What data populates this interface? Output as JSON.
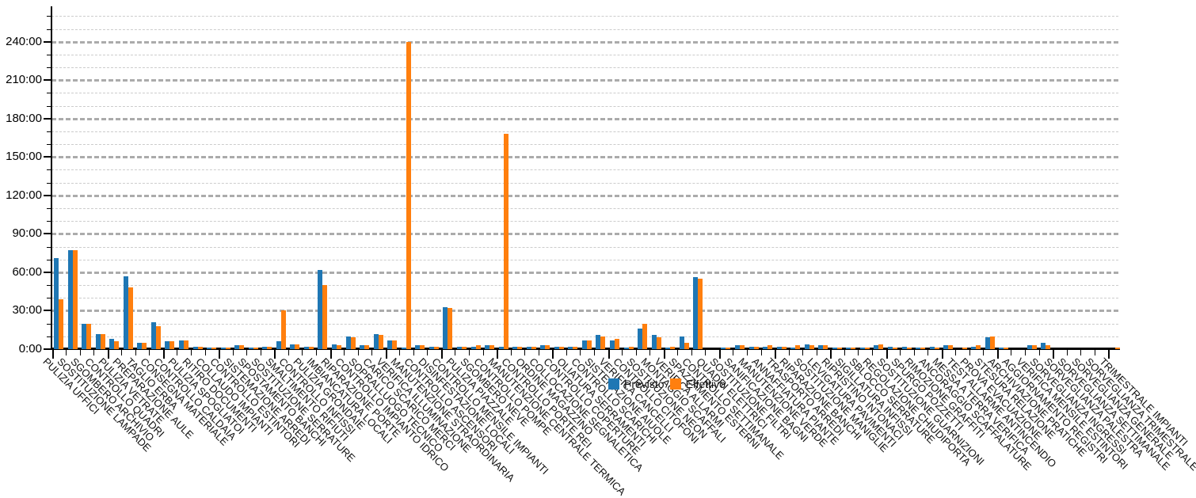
{
  "chart_data": {
    "type": "bar",
    "title": "",
    "value_format": "minutes shown as M:SS",
    "y_axis": {
      "tick_labels": [
        "0:00",
        "30:00",
        "60:00",
        "90:00",
        "120:00",
        "150:00",
        "180:00",
        "210:00",
        "240:00"
      ],
      "major_step_minutes": 30,
      "minor_step_minutes": 10,
      "range_minutes": [
        0,
        260
      ],
      "grid": "horizontal dashed"
    },
    "legend": {
      "position": "bottom-center"
    },
    "categories": [
      "PULIZIA UFFICI",
      "SOSTITUZIONE LAMPADE",
      "SGOMBERO ARCHIVIO",
      "CONTROLLO QUADRI",
      "PULIZIA VETRATE",
      "PREPARAZIONE AULE",
      "TAGLIO ERBA",
      "CONSEGNA MATERIALE",
      "CONTROLLO CALDAIA",
      "PULIZIA SPOGLIATOI",
      "RITIRO DOCUMENTI",
      "COLLAUDO IMPIANTI",
      "CONTROLLO ESTINTORI",
      "SISTEMAZIONE ARREDI",
      "SPOSTAMENTO BANCHI",
      "SOSTITUZIONE SERRATURE",
      "SMALTIMENTO RIFIUTI",
      "CONTROLLO INFISSI",
      "PULIZIA GRONDAIE",
      "IMBIANCATURA LOCALI",
      "RIPARAZIONE PORTE",
      "CONTROLLO IMPIANTO IDRICO",
      "SOPRALLUOGO TECNICO",
      "CARICO SCARICO MERCI",
      "VERIFICA ILLUMINAZIONE",
      "MANUTENZIONE STRAORDINARIA",
      "CONTROLLO ASCENSORI",
      "DISINFESTAZIONE LOCALI",
      "CONTROLLO MENSILE IMPIANTI",
      "PULIZIA PIAZZALE",
      "SGOMBERO NEVE",
      "CONTROLLO POMPE",
      "MANUTENZIONE CENTRALE TERMICA",
      "CONTROLLO PORTE REI",
      "ORDINE MAGAZZINO",
      "COLLOCAZIONE SEGNALETICA",
      "CONTROLLO COPERTURE",
      "OLIATURA SERRAMENTI",
      "CONTROLLO SCARICHI",
      "SISTEMAZIONE AIUOLE",
      "VERIFICA CANCELLI",
      "CONTROLLO CITOFONI",
      "SOSTITUZIONE NEON",
      "MONTAGGIO SCAFFALI",
      "VERIFICA ALLARMI",
      "SPAZZAMENTO ESTERNI",
      "CONTROLLO SETTIMANALE",
      "QUADRI ELETTRICI",
      "SOSTITUZIONE FILTRI",
      "SANIFICAZIONE BAGNI",
      "MANUTENZIONE VERDE",
      "ANNAFFIATURA PIANTE",
      "TRASPORTO ARREDI",
      "RIPARAZIONE BANCHI",
      "SOSTITUZIONE MANIGLIE",
      "LEVIGATURA PAVIMENTI",
      "RIPRISTINO INTONACI",
      "SIGILLATURA INFISSI",
      "SBLOCCO SERRATURE",
      "REGOLAZIONE CHIUDIPORTA",
      "SOSTITUZIONE GUARNIZIONI",
      "SPURGO POZZETTI",
      "RIMOZIONE GRAFFITI",
      "ANCORAGGIO SCAFFALATURE",
      "MESSA A TERRA VERIFICA",
      "TEST ALLARME ANTINCENDIO",
      "PROVA EVACUAZIONE",
      "STESURA RELAZIONE",
      "ARCHIVIAZIONE PRATICHE",
      "AGGIORNAMENTO REGISTRI",
      "VERIFICA MENSILE ESTINTORI",
      "SORVEGLIANZA INGRESSI",
      "SORVEGLIANZA PALESTRA",
      "SORVEGLIANZA SETTIMANALE",
      "SORVEGLIANZA GENERALE",
      "SORVEGLIANZA TRIMESTRALE",
      "TRIMESTRALE IMPIANTI"
    ],
    "series": [
      {
        "name": "Previsto",
        "color": "#1f77b4",
        "values": [
          71,
          77,
          20,
          12,
          8,
          57,
          5,
          21,
          6,
          7,
          2,
          1,
          1,
          3,
          1,
          2,
          6,
          4,
          2,
          62,
          4,
          10,
          3,
          12,
          7,
          1,
          3,
          2,
          33,
          2,
          2,
          3,
          2,
          2,
          2,
          3,
          2,
          2,
          7,
          11,
          7,
          1,
          16,
          11,
          1,
          10,
          56,
          0,
          1,
          3,
          2,
          2,
          2,
          1,
          4,
          3,
          1,
          1,
          1,
          3,
          2,
          2,
          1,
          2,
          3,
          0,
          2,
          9,
          1,
          0,
          3,
          5,
          0,
          0,
          0,
          0,
          0
        ]
      },
      {
        "name": "Effettivo",
        "color": "#ff7f0e",
        "values": [
          39,
          77,
          20,
          12,
          6,
          48,
          5,
          18,
          6,
          7,
          2,
          1,
          1,
          3,
          1,
          2,
          30,
          4,
          2,
          50,
          3,
          9,
          3,
          11,
          7,
          240,
          3,
          2,
          32,
          2,
          3,
          3,
          168,
          2,
          2,
          3,
          2,
          2,
          7,
          10,
          8,
          2,
          20,
          9,
          2,
          5,
          55,
          0,
          1,
          3,
          2,
          3,
          2,
          3,
          3,
          3,
          1,
          1,
          1,
          4,
          1,
          1,
          1,
          1,
          3,
          1,
          3,
          10,
          1,
          0,
          3,
          3,
          0,
          0,
          0,
          0,
          1
        ]
      }
    ]
  }
}
